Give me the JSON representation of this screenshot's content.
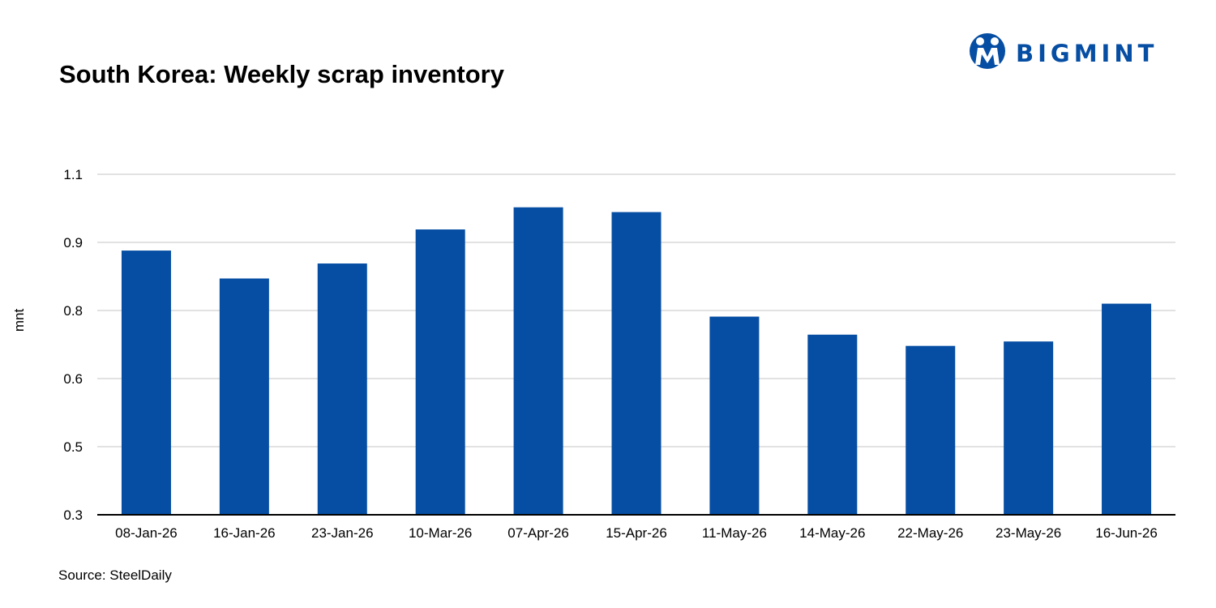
{
  "title": "South Korea: Weekly scrap inventory",
  "source": "Source: SteelDaily",
  "logo": {
    "text": "BIGMINT",
    "icon": "bigmint-logo-icon",
    "color": "#064ea3"
  },
  "colors": {
    "bar": "#064ea3",
    "grid": "#d9d9d9",
    "axis": "#000000"
  },
  "chart_data": {
    "type": "bar",
    "title": "South Korea: Weekly scrap inventory",
    "ylabel": "mnt",
    "xlabel": "",
    "categories": [
      "08-Jan-26",
      "16-Jan-26",
      "23-Jan-26",
      "10-Mar-26",
      "07-Apr-26",
      "15-Apr-26",
      "11-May-26",
      "14-May-26",
      "22-May-26",
      "23-May-26",
      "16-Jun-26"
    ],
    "values": [
      0.888,
      0.847,
      0.869,
      0.938,
      1.003,
      0.989,
      0.782,
      0.729,
      0.696,
      0.709,
      0.81
    ],
    "yticks": [
      0.3,
      0.5,
      0.6,
      0.8,
      0.9,
      1.1
    ],
    "ytick_labels": [
      "0.3",
      "0.5",
      "0.6",
      "0.8",
      "0.9",
      "1.1"
    ],
    "ylim": [
      0.3,
      1.1
    ],
    "grid": true,
    "legend": "none"
  }
}
